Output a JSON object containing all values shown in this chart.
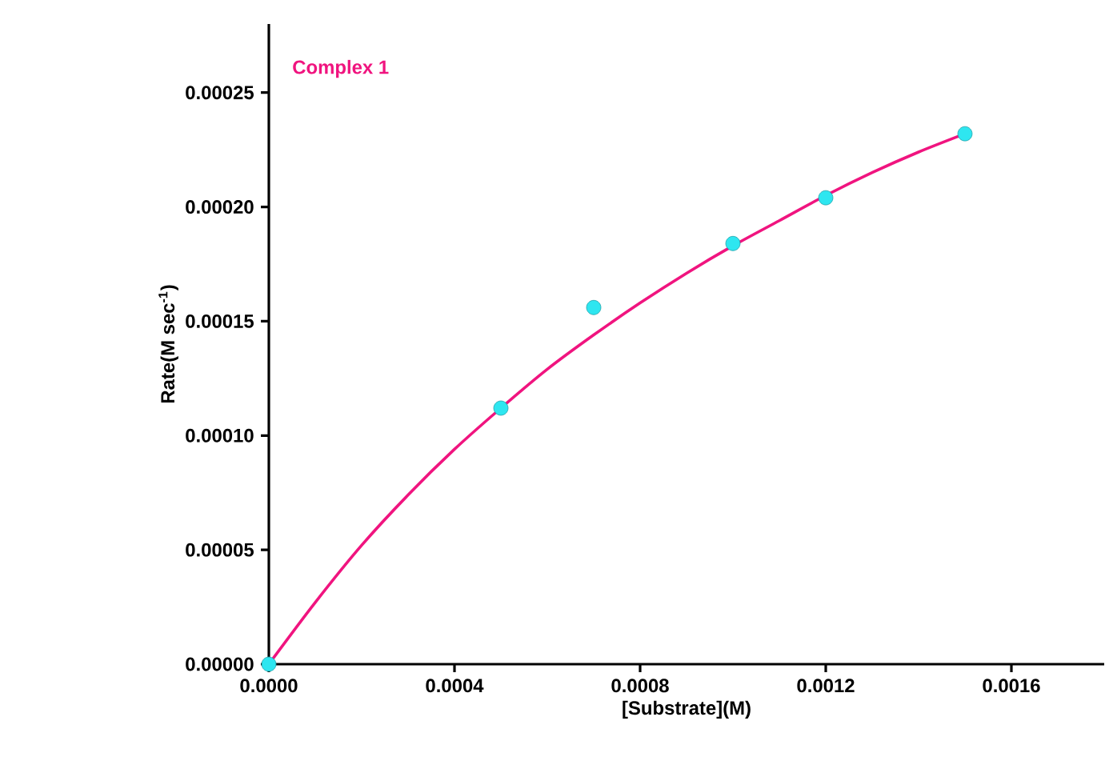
{
  "chart_data": {
    "type": "scatter",
    "xlabel": "[Substrate](M)",
    "ylabel": "Rate(M sec$^{-1}$)",
    "xlim": [
      0,
      0.0018
    ],
    "ylim": [
      0,
      0.00028
    ],
    "xticks": [
      {
        "value": 0,
        "label": "0.0000"
      },
      {
        "value": 0.0004,
        "label": "0.0004"
      },
      {
        "value": 0.0008,
        "label": "0.0008"
      },
      {
        "value": 0.0012,
        "label": "0.0012"
      },
      {
        "value": 0.0016,
        "label": "0.0016"
      }
    ],
    "yticks": [
      {
        "value": 0,
        "label": "0.00000"
      },
      {
        "value": 5e-05,
        "label": "0.00005"
      },
      {
        "value": 0.0001,
        "label": "0.00010"
      },
      {
        "value": 0.00015,
        "label": "0.00015"
      },
      {
        "value": 0.0002,
        "label": "0.00020"
      },
      {
        "value": 0.00025,
        "label": "0.00025"
      }
    ],
    "legend": false,
    "grid": false,
    "series": [
      {
        "marker": "circle",
        "color": "#2ee6f0",
        "x": [
          0,
          0.0005,
          0.0007,
          0.001,
          0.0012,
          0.0015
        ],
        "values": [
          0,
          0.000112,
          0.000156,
          0.000184,
          0.000204,
          0.000232
        ]
      },
      {
        "type": "line",
        "marker": "none",
        "name": "Complex 1",
        "color": "#f0147f",
        "x": [
          0,
          0.0001,
          0.0002,
          0.0003,
          0.0004,
          0.0005,
          0.0006,
          0.0007,
          0.0008,
          0.0009,
          0.001,
          0.0011,
          0.0012,
          0.0013,
          0.0014,
          0.0015
        ],
        "values": [
          0,
          2.7e-05,
          5.2e-05,
          7.4e-05,
          9.4e-05,
          0.000112,
          0.000129,
          0.000144,
          0.000158,
          0.000171,
          0.000183,
          0.000194,
          0.000205,
          0.000215,
          0.000224,
          0.000232
        ]
      }
    ]
  }
}
